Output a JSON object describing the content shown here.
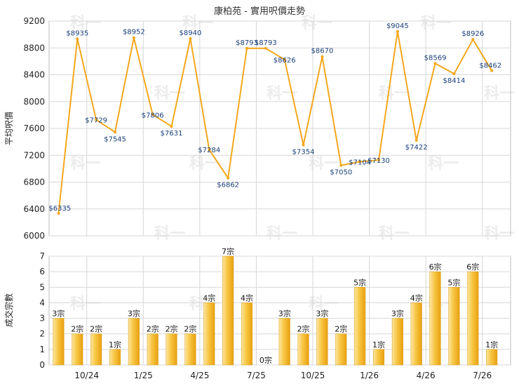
{
  "title": "康柏苑 - 實用呎價走勢",
  "watermark": "科一",
  "colors": {
    "line": "#f5a71c",
    "bar_light": "#fde6a0",
    "bar_dark": "#e9a010",
    "grid": "#d7d7d7",
    "label": "#1a3f7a"
  },
  "chart_data": [
    {
      "type": "line",
      "title": "康柏苑 - 實用呎價走勢",
      "ylabel": "平均呎價",
      "ylim": [
        6000,
        9200
      ],
      "yticks": [
        6000,
        6400,
        6800,
        7200,
        7600,
        8000,
        8400,
        8800,
        9200
      ],
      "points": [
        {
          "x": 0,
          "y": 6335,
          "label": "$6335"
        },
        {
          "x": 1,
          "y": 8935,
          "label": "$8935"
        },
        {
          "x": 2,
          "y": 7729,
          "label": "$7729"
        },
        {
          "x": 3,
          "y": 7545,
          "label": "$7545"
        },
        {
          "x": 4,
          "y": 8952,
          "label": "$8952"
        },
        {
          "x": 5,
          "y": 7806,
          "label": "$7806"
        },
        {
          "x": 6,
          "y": 7631,
          "label": "$7631"
        },
        {
          "x": 7,
          "y": 8940,
          "label": "$8940"
        },
        {
          "x": 8,
          "y": 7284,
          "label": "$7284"
        },
        {
          "x": 9,
          "y": 6862,
          "label": "$6862"
        },
        {
          "x": 10,
          "y": 8793,
          "label": "$8793"
        },
        {
          "x": 11,
          "y": 8793,
          "label": "$8793"
        },
        {
          "x": 12,
          "y": 8626,
          "label": "$8626"
        },
        {
          "x": 13,
          "y": 7354,
          "label": "$7354"
        },
        {
          "x": 14,
          "y": 8670,
          "label": "$8670"
        },
        {
          "x": 15,
          "y": 7050,
          "label": "$7050"
        },
        {
          "x": 16,
          "y": 7104,
          "label": "$7104"
        },
        {
          "x": 17,
          "y": 7130,
          "label": "$7130"
        },
        {
          "x": 18,
          "y": 9045,
          "label": "$9045"
        },
        {
          "x": 19,
          "y": 7422,
          "label": "$7422"
        },
        {
          "x": 20,
          "y": 8569,
          "label": "$8569"
        },
        {
          "x": 21,
          "y": 8414,
          "label": "$8414"
        },
        {
          "x": 22,
          "y": 8926,
          "label": "$8926"
        },
        {
          "x": 23,
          "y": 8462,
          "label": "$8462"
        }
      ]
    },
    {
      "type": "bar",
      "ylabel": "成交宗數",
      "ylim": [
        0,
        7
      ],
      "yticks": [
        0,
        1,
        2,
        3,
        4,
        5,
        6,
        7
      ],
      "values": [
        3,
        2,
        2,
        1,
        3,
        2,
        2,
        2,
        4,
        7,
        4,
        0,
        3,
        2,
        3,
        2,
        5,
        1,
        3,
        4,
        6,
        5,
        6,
        1
      ],
      "value_labels": [
        "3宗",
        "2宗",
        "2宗",
        "1宗",
        "3宗",
        "2宗",
        "2宗",
        "2宗",
        "4宗",
        "7宗",
        "4宗",
        "0宗",
        "3宗",
        "2宗",
        "3宗",
        "2宗",
        "5宗",
        "1宗",
        "3宗",
        "4宗",
        "6宗",
        "5宗",
        "6宗",
        "1宗"
      ],
      "xticks": [
        {
          "at": 2,
          "label": "10/24"
        },
        {
          "at": 5,
          "label": "1/25"
        },
        {
          "at": 8,
          "label": "4/25"
        },
        {
          "at": 11,
          "label": "7/25"
        },
        {
          "at": 14,
          "label": "10/25"
        },
        {
          "at": 17,
          "label": "1/26"
        },
        {
          "at": 20,
          "label": "4/26"
        },
        {
          "at": 23,
          "label": "7/26"
        }
      ]
    }
  ]
}
